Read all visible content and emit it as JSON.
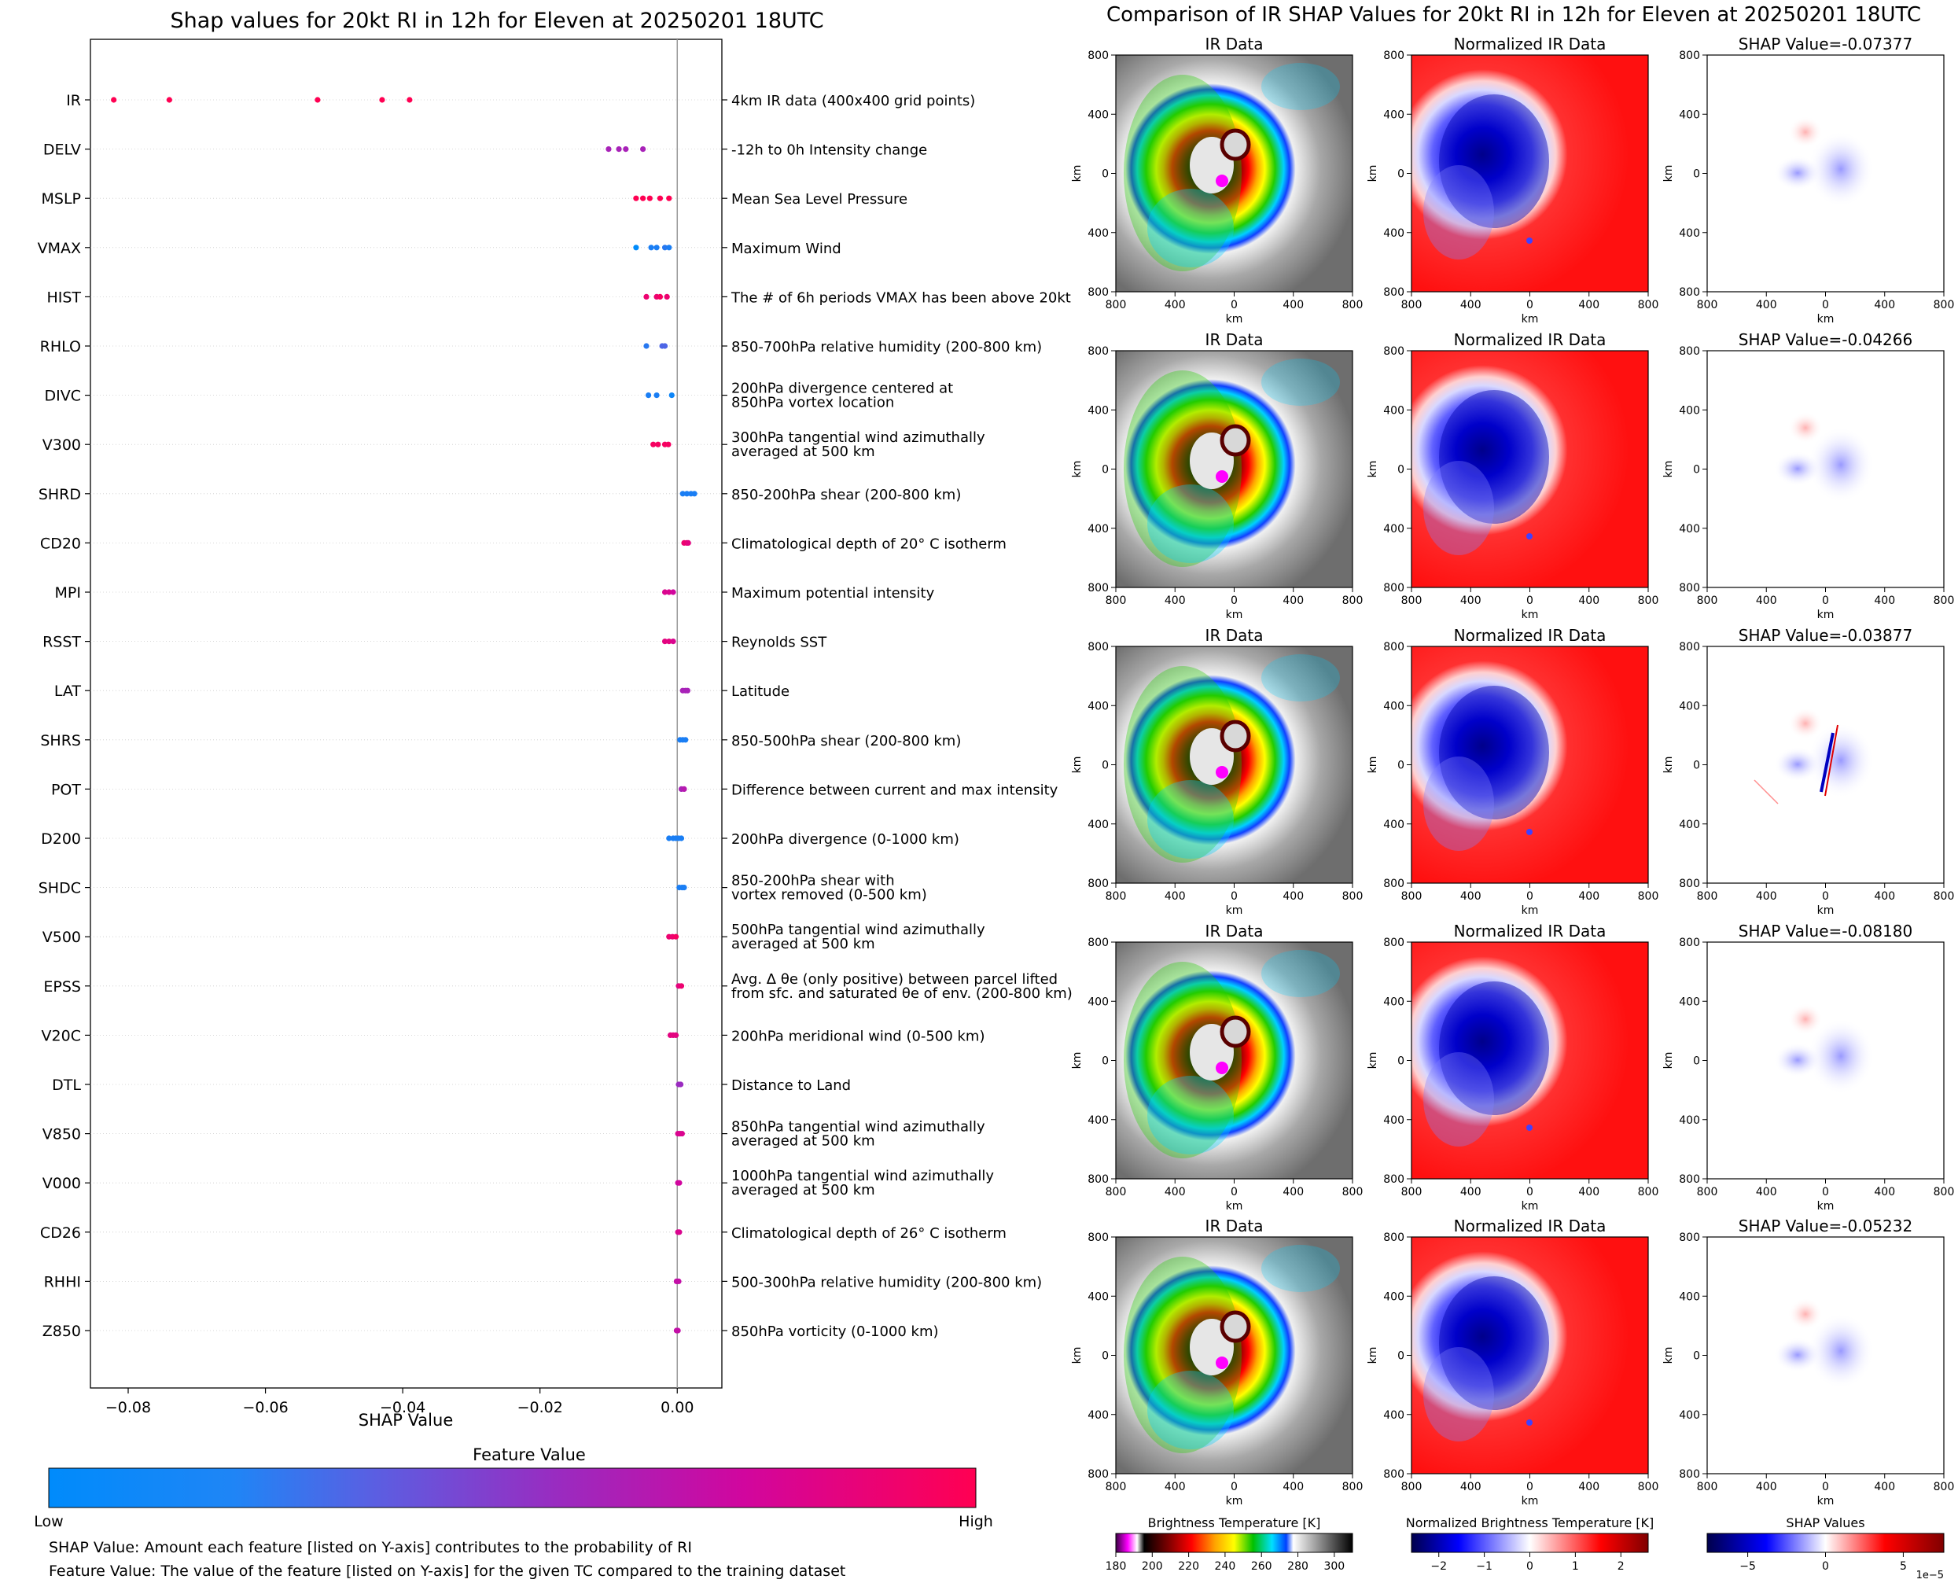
{
  "left": {
    "title": "Shap values for 20kt RI in 12h for Eleven at 20250201 18UTC",
    "xlabel": "SHAP Value",
    "xticks": [
      -0.08,
      -0.06,
      -0.04,
      -0.02,
      0.0
    ],
    "xtick_labels": [
      "−0.08",
      "−0.06",
      "−0.04",
      "−0.02",
      "0.00"
    ],
    "xlim": [
      -0.0855,
      0.0065
    ],
    "colorbar": {
      "title": "Feature Value",
      "low": "Low",
      "high": "High",
      "colors": [
        "#008bfb",
        "#3b73f0",
        "#8a3ccd",
        "#c012a8",
        "#ff0052"
      ]
    },
    "footnotes": [
      "SHAP Value: Amount each feature [listed on Y-axis] contributes to the probability of RI",
      "Feature Value: The value of the feature [listed on Y-axis] for the given TC compared to the training dataset"
    ]
  },
  "chart_data": {
    "type": "scatter",
    "title": "Shap values for 20kt RI in 12h for Eleven at 20250201 18UTC",
    "xlabel": "SHAP Value",
    "features": [
      {
        "code": "IR",
        "desc": [
          "4km IR data (400x400 grid points)"
        ],
        "points": [
          [
            -0.0821,
            1.0
          ],
          [
            -0.074,
            1.0
          ],
          [
            -0.0524,
            1.0
          ],
          [
            -0.043,
            1.0
          ],
          [
            -0.039,
            1.0
          ]
        ]
      },
      {
        "code": "DELV",
        "desc": [
          "-12h to 0h Intensity change"
        ],
        "points": [
          [
            -0.01,
            0.6
          ],
          [
            -0.0085,
            0.6
          ],
          [
            -0.0075,
            0.6
          ],
          [
            -0.005,
            0.6
          ]
        ]
      },
      {
        "code": "MSLP",
        "desc": [
          "Mean Sea Level Pressure"
        ],
        "points": [
          [
            -0.006,
            1.0
          ],
          [
            -0.005,
            1.0
          ],
          [
            -0.004,
            1.0
          ],
          [
            -0.0025,
            1.0
          ],
          [
            -0.0012,
            1.0
          ]
        ]
      },
      {
        "code": "VMAX",
        "desc": [
          "Maximum Wind"
        ],
        "points": [
          [
            -0.006,
            0.0
          ],
          [
            -0.0038,
            0.1
          ],
          [
            -0.003,
            0.1
          ],
          [
            -0.0018,
            0.15
          ],
          [
            -0.0012,
            0.1
          ]
        ]
      },
      {
        "code": "HIST",
        "desc": [
          "The # of 6h periods VMAX has been above 20kt"
        ],
        "points": [
          [
            -0.0045,
            0.9
          ],
          [
            -0.003,
            0.9
          ],
          [
            -0.0025,
            0.95
          ],
          [
            -0.0015,
            0.9
          ]
        ]
      },
      {
        "code": "RHLO",
        "desc": [
          "850-700hPa relative humidity (200-800 km)"
        ],
        "points": [
          [
            -0.0045,
            0.15
          ],
          [
            -0.0022,
            0.3
          ],
          [
            -0.0018,
            0.3
          ]
        ]
      },
      {
        "code": "DIVC",
        "desc": [
          "200hPa divergence centered at",
          "850hPa vortex location"
        ],
        "points": [
          [
            -0.0042,
            0.1
          ],
          [
            -0.003,
            0.1
          ],
          [
            -0.0008,
            0.05
          ]
        ]
      },
      {
        "code": "V300",
        "desc": [
          "300hPa tangential wind azimuthally",
          "averaged at 500 km"
        ],
        "points": [
          [
            -0.0035,
            0.95
          ],
          [
            -0.0028,
            0.95
          ],
          [
            -0.0018,
            0.95
          ],
          [
            -0.0013,
            0.95
          ]
        ]
      },
      {
        "code": "SHRD",
        "desc": [
          "850-200hPa shear (200-800 km)"
        ],
        "points": [
          [
            0.0008,
            0.1
          ],
          [
            0.0014,
            0.1
          ],
          [
            0.002,
            0.1
          ],
          [
            0.0025,
            0.1
          ]
        ]
      },
      {
        "code": "CD20",
        "desc": [
          "Climatological depth of 20° C isotherm"
        ],
        "points": [
          [
            0.001,
            0.9
          ],
          [
            0.0014,
            0.9
          ],
          [
            0.0016,
            0.85
          ]
        ]
      },
      {
        "code": "MPI",
        "desc": [
          "Maximum potential intensity"
        ],
        "points": [
          [
            -0.0018,
            0.8
          ],
          [
            -0.0012,
            0.8
          ],
          [
            -0.0006,
            0.75
          ]
        ]
      },
      {
        "code": "RSST",
        "desc": [
          "Reynolds SST"
        ],
        "points": [
          [
            -0.0018,
            0.85
          ],
          [
            -0.0012,
            0.85
          ],
          [
            -0.0006,
            0.8
          ]
        ]
      },
      {
        "code": "LAT",
        "desc": [
          "Latitude"
        ],
        "points": [
          [
            0.0008,
            0.6
          ],
          [
            0.0012,
            0.6
          ],
          [
            0.0015,
            0.6
          ]
        ]
      },
      {
        "code": "SHRS",
        "desc": [
          "850-500hPa shear (200-800 km)"
        ],
        "points": [
          [
            0.0004,
            0.1
          ],
          [
            0.0008,
            0.1
          ],
          [
            0.0012,
            0.1
          ]
        ]
      },
      {
        "code": "POT",
        "desc": [
          "Difference between current and max intensity"
        ],
        "points": [
          [
            0.0006,
            0.6
          ],
          [
            0.001,
            0.65
          ]
        ]
      },
      {
        "code": "D200",
        "desc": [
          "200hPa divergence (0-1000 km)"
        ],
        "points": [
          [
            -0.0012,
            0.1
          ],
          [
            -0.0006,
            0.1
          ],
          [
            -0.0002,
            0.1
          ],
          [
            0.0002,
            0.1
          ],
          [
            0.0006,
            0.1
          ]
        ]
      },
      {
        "code": "SHDC",
        "desc": [
          "850-200hPa shear with",
          "vortex removed (0-500 km)"
        ],
        "points": [
          [
            0.0003,
            0.1
          ],
          [
            0.0007,
            0.1
          ],
          [
            0.001,
            0.1
          ]
        ]
      },
      {
        "code": "V500",
        "desc": [
          "500hPa tangential wind azimuthally",
          "averaged at 500 km"
        ],
        "points": [
          [
            -0.0012,
            0.9
          ],
          [
            -0.0007,
            0.9
          ],
          [
            -0.0002,
            0.95
          ]
        ]
      },
      {
        "code": "EPSS",
        "desc": [
          "Avg. Δ θe (only positive) between parcel lifted",
          "from sfc. and saturated θe of env. (200-800 km)"
        ],
        "points": [
          [
            0.0002,
            0.85
          ],
          [
            0.0006,
            0.9
          ]
        ]
      },
      {
        "code": "V20C",
        "desc": [
          "200hPa meridional wind (0-500 km)"
        ],
        "points": [
          [
            -0.001,
            0.85
          ],
          [
            -0.0006,
            0.85
          ],
          [
            -0.0002,
            0.85
          ]
        ]
      },
      {
        "code": "DTL",
        "desc": [
          "Distance to Land"
        ],
        "points": [
          [
            0.0002,
            0.55
          ],
          [
            0.0005,
            0.55
          ]
        ]
      },
      {
        "code": "V850",
        "desc": [
          "850hPa tangential wind azimuthally",
          "averaged at 500 km"
        ],
        "points": [
          [
            0.0001,
            0.8
          ],
          [
            0.0004,
            0.8
          ],
          [
            0.0007,
            0.8
          ]
        ]
      },
      {
        "code": "V000",
        "desc": [
          "1000hPa tangential wind azimuthally",
          "averaged at 500 km"
        ],
        "points": [
          [
            0.0001,
            0.75
          ],
          [
            0.0003,
            0.75
          ]
        ]
      },
      {
        "code": "CD26",
        "desc": [
          "Climatological depth of 26° C isotherm"
        ],
        "points": [
          [
            0.0001,
            0.8
          ],
          [
            0.0003,
            0.8
          ]
        ]
      },
      {
        "code": "RHHI",
        "desc": [
          "500-300hPa relative humidity (200-800 km)"
        ],
        "points": [
          [
            -0.0001,
            0.7
          ],
          [
            0.0002,
            0.7
          ]
        ]
      },
      {
        "code": "Z850",
        "desc": [
          "850hPa vorticity (0-1000 km)"
        ],
        "points": [
          [
            -0.0001,
            0.7
          ],
          [
            0.0001,
            0.7
          ]
        ]
      }
    ]
  },
  "right": {
    "title": "Comparison of IR SHAP Values for 20kt RI in 12h for Eleven at 20250201 18UTC",
    "col_titles": [
      "IR Data",
      "Normalized IR Data"
    ],
    "shap_titles": [
      "SHAP Value=-0.07377",
      "SHAP Value=-0.04266",
      "SHAP Value=-0.03877",
      "SHAP Value=-0.08180",
      "SHAP Value=-0.05232"
    ],
    "tick_labels": [
      "800",
      "400",
      "0",
      "400",
      "800"
    ],
    "km": "km",
    "colorbars": [
      {
        "title": "Brightness Temperature [K]",
        "ticks": [
          "180",
          "200",
          "220",
          "240",
          "260",
          "280",
          "300"
        ]
      },
      {
        "title": "Normalized Brightness Temperature [K]",
        "ticks": [
          "−2",
          "−1",
          "0",
          "1",
          "2"
        ]
      },
      {
        "title": "SHAP Values",
        "ticks": [
          "−5",
          "0",
          "5"
        ],
        "multiplier": "1e−5"
      }
    ]
  }
}
